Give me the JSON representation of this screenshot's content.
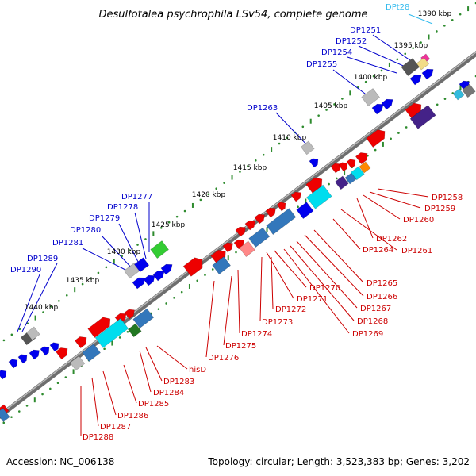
{
  "title": "Desulfotalea psychrophila LSv54, complete genome",
  "footer": {
    "accession": "Accession: NC_006138",
    "summary": "Topology: circular; Length: 3,523,383 bp; Genes: 3,202"
  },
  "colors": {
    "backbone": "#7a7a7a",
    "tick": "#2e8b2e",
    "blue_label": "#0000cc",
    "red_label": "#cc0000",
    "cyan_label": "#33bbee"
  },
  "scale_labels": [
    "1390 kbp",
    "1395 kbp",
    "1400 kbp",
    "1405 kbp",
    "1410 kbp",
    "1415 kbp",
    "1420 kbp",
    "1425 kbp",
    "1430 kbp",
    "1435 kbp",
    "1440 kbp"
  ],
  "outer_labels": [
    {
      "text": "DPt28",
      "color": "cyan"
    },
    {
      "text": "DP1251",
      "color": "blue"
    },
    {
      "text": "DP1252",
      "color": "blue"
    },
    {
      "text": "DP1254",
      "color": "blue"
    },
    {
      "text": "DP1255",
      "color": "blue"
    },
    {
      "text": "DP1263",
      "color": "blue"
    },
    {
      "text": "DP1277",
      "color": "blue"
    },
    {
      "text": "DP1278",
      "color": "blue"
    },
    {
      "text": "DP1279",
      "color": "blue"
    },
    {
      "text": "DP1280",
      "color": "blue"
    },
    {
      "text": "DP1281",
      "color": "blue"
    },
    {
      "text": "DP1289",
      "color": "blue"
    },
    {
      "text": "DP1290",
      "color": "blue"
    }
  ],
  "inner_labels": [
    "DP1258",
    "DP1259",
    "DP1260",
    "DP1262",
    "DP1264",
    "DP1261",
    "DP1265",
    "DP1266",
    "DP1267",
    "DP1268",
    "DP1269",
    "DP1270",
    "DP1271",
    "DP1272",
    "DP1273",
    "DP1274",
    "DP1275",
    "DP1276",
    "hisD",
    "DP1283",
    "DP1284",
    "DP1285",
    "DP1286",
    "DP1287",
    "DP1288"
  ]
}
